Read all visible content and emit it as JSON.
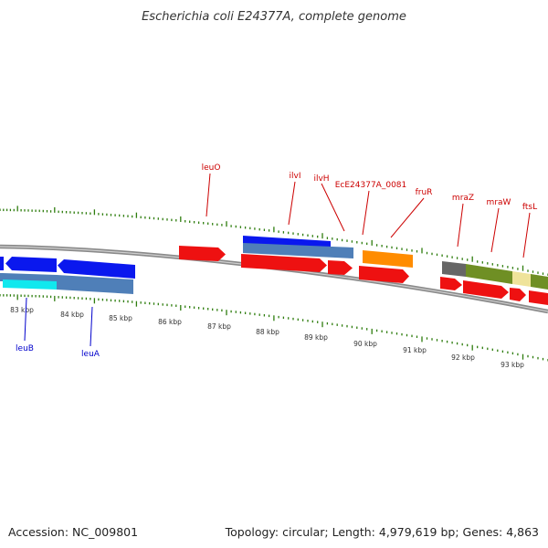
{
  "title": "Escherichia coli E24377A, complete genome",
  "footer": {
    "accession": "Accession: NC_009801",
    "summary": "Topology: circular; Length: 4,979,619 bp; Genes: 4,863"
  },
  "scale": {
    "labels": [
      "83 kbp",
      "84 kbp",
      "85 kbp",
      "86 kbp",
      "87 kbp",
      "88 kbp",
      "89 kbp",
      "90 kbp",
      "91 kbp",
      "92 kbp",
      "93 kbp"
    ]
  },
  "genes_top": [
    {
      "name": "leuO"
    },
    {
      "name": "ilvI"
    },
    {
      "name": "ilvH"
    },
    {
      "name": "EcE24377A_0081"
    },
    {
      "name": "fruR"
    },
    {
      "name": "mraZ"
    },
    {
      "name": "mraW"
    },
    {
      "name": "ftsL"
    }
  ],
  "genes_bottom": [
    {
      "name": "leuB"
    },
    {
      "name": "leuA"
    }
  ],
  "colors": {
    "forward": "#ee1111",
    "reverse_blue": "#0a18ee",
    "steel": "#4f7fb8",
    "cyan": "#11e8ee",
    "orange": "#ff8c00",
    "olive": "#6f8f24",
    "gray": "#666666",
    "yellow": "#efe39a",
    "tick": "#2e7d0e",
    "backbone": "#8a8a8a"
  }
}
